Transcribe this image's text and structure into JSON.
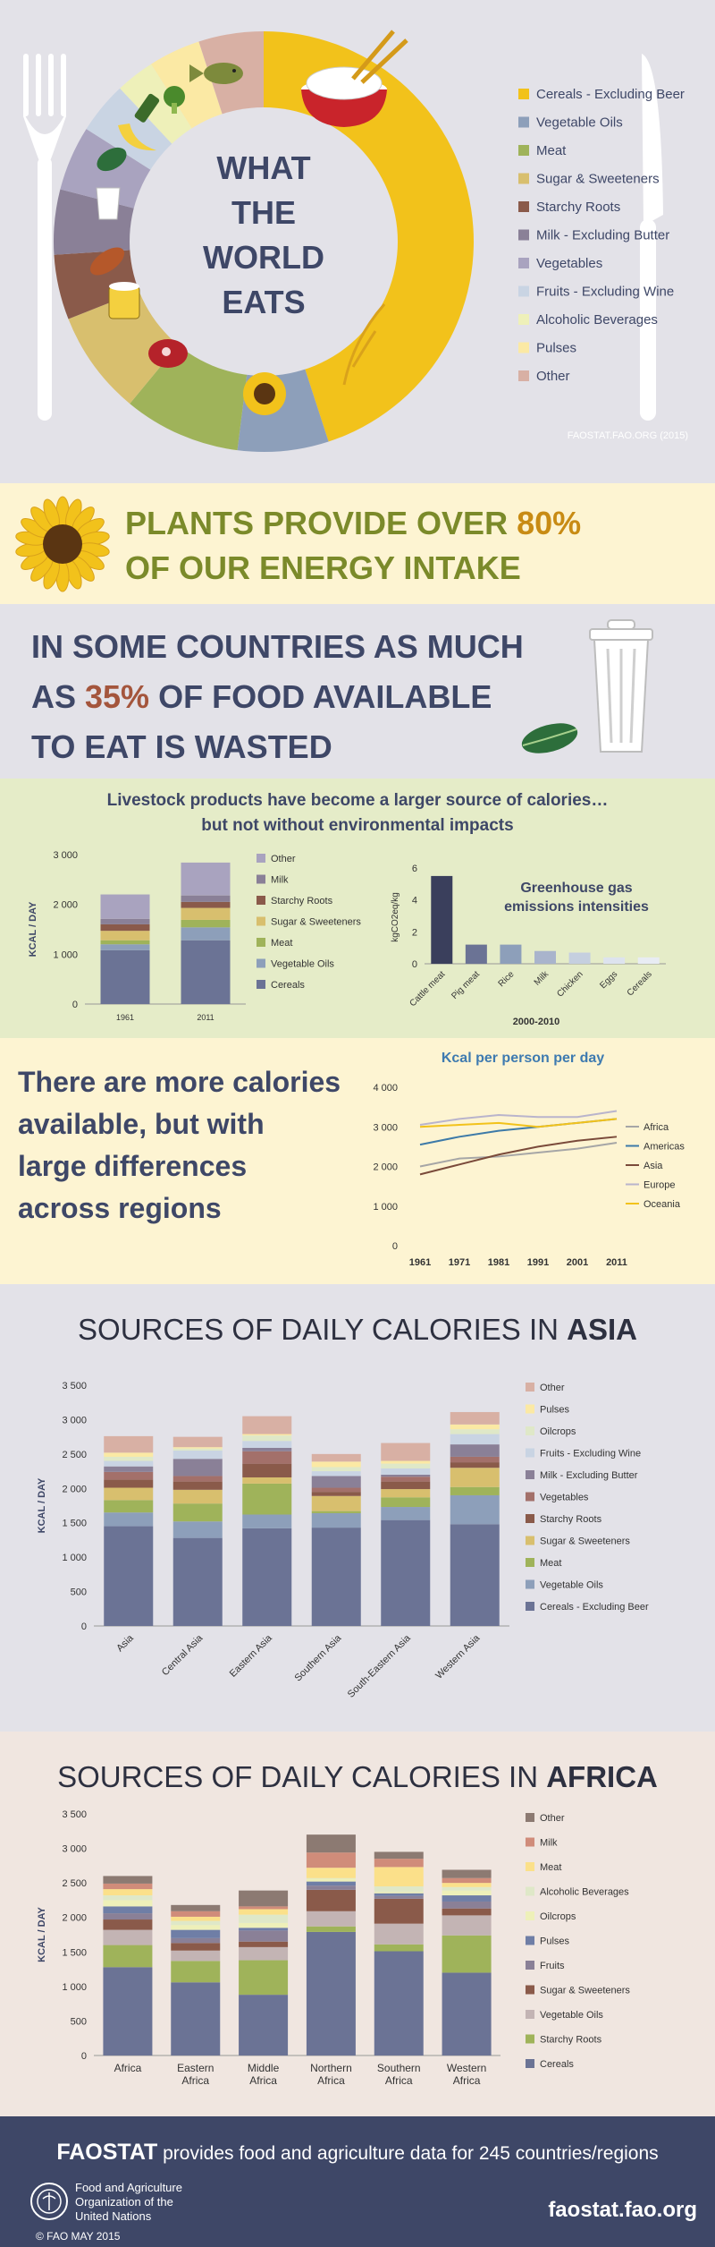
{
  "hero": {
    "title_lines": [
      "WHAT",
      "THE",
      "WORLD",
      "EATS"
    ],
    "source": "FAOSTAT.FAO.ORG (2015)",
    "legend": [
      {
        "label": "Cereals - Excluding Beer",
        "color": "#f2c21b"
      },
      {
        "label": "Vegetable Oils",
        "color": "#8d9fba"
      },
      {
        "label": "Meat",
        "color": "#9fb35a"
      },
      {
        "label": "Sugar & Sweeteners",
        "color": "#d8bf6e"
      },
      {
        "label": "Starchy Roots",
        "color": "#8a5a4a"
      },
      {
        "label": "Milk - Excluding Butter",
        "color": "#8a8097"
      },
      {
        "label": "Vegetables",
        "color": "#a9a3bf"
      },
      {
        "label": "Fruits - Excluding Wine",
        "color": "#c9d4e3"
      },
      {
        "label": "Alcoholic Beverages",
        "color": "#eef0b9"
      },
      {
        "label": "Pulses",
        "color": "#fbe9a4"
      },
      {
        "label": "Other",
        "color": "#d8b0a4"
      }
    ]
  },
  "plants": {
    "line1_pre": "PLANTS PROVIDE OVER ",
    "line1_highlight": "80%",
    "line2": "OF OUR ENERGY INTAKE"
  },
  "waste": {
    "line1": "IN SOME COUNTRIES AS MUCH",
    "line2_pre": "AS ",
    "line2_highlight": "35%",
    "line2_post": " OF FOOD AVAILABLE",
    "line3": "TO EAT IS WASTED"
  },
  "livestock": {
    "title1": "Livestock products have become a larger source of calories…",
    "title2": "but not without environmental impacts"
  },
  "regions": {
    "text_lines": [
      "There are more calories",
      "available, but with",
      "large differences",
      "across regions"
    ]
  },
  "asia": {
    "title_pre": "SOURCES OF DAILY CALORIES IN ",
    "title_bold": "ASIA"
  },
  "africa": {
    "title_pre": "SOURCES OF DAILY CALORIES IN ",
    "title_bold": "AFRICA"
  },
  "footer": {
    "brand": "FAOSTAT",
    "text": " provides food and agriculture data for 245 countries/regions",
    "org_lines": [
      "Food and Agriculture",
      "Organization of the",
      "United Nations"
    ],
    "url": "faostat.fao.org",
    "copyright": "© FAO MAY 2015"
  },
  "chart_data": [
    {
      "id": "livestock",
      "type": "bar",
      "stacked": true,
      "ylabel": "KCAL / DAY",
      "ylim": [
        0,
        3000
      ],
      "yticks": [
        "0",
        "1 000",
        "2 000",
        "3 000"
      ],
      "categories": [
        "1961",
        "2011"
      ],
      "series": [
        {
          "name": "Cereals",
          "color": "#6b7395",
          "values": [
            1080,
            1280
          ]
        },
        {
          "name": "Vegetable Oils",
          "color": "#8d9fba",
          "values": [
            120,
            260
          ]
        },
        {
          "name": "Meat",
          "color": "#9fb35a",
          "values": [
            80,
            150
          ]
        },
        {
          "name": "Sugar & Sweeteners",
          "color": "#d8bf6e",
          "values": [
            190,
            240
          ]
        },
        {
          "name": "Starchy Roots",
          "color": "#8a5a4a",
          "values": [
            130,
            120
          ]
        },
        {
          "name": "Milk",
          "color": "#8a8097",
          "values": [
            110,
            130
          ]
        },
        {
          "name": "Other",
          "color": "#a9a3bf",
          "values": [
            490,
            660
          ]
        }
      ]
    },
    {
      "id": "ghg",
      "type": "bar",
      "title": "Greenhouse gas emissions intensities",
      "ylabel": "kgCO2eq/kg",
      "xlabel": "2000-2010",
      "ylim": [
        0,
        6
      ],
      "yticks": [
        "0",
        "2",
        "4",
        "6"
      ],
      "categories": [
        "Cattle meat",
        "Pig meat",
        "Rice",
        "Milk",
        "Chicken",
        "Eggs",
        "Cereals"
      ],
      "colors": [
        "#3a3f5c",
        "#6b7395",
        "#8d9fba",
        "#a9b4cc",
        "#c5cfdf",
        "#dde3ee",
        "#e8ecf3"
      ],
      "values": [
        5.5,
        1.2,
        1.2,
        0.8,
        0.7,
        0.4,
        0.4
      ]
    },
    {
      "id": "kcal-lines",
      "type": "line",
      "title": "Kcal per person per day",
      "ylim": [
        0,
        4000
      ],
      "yticks": [
        "0",
        "1 000",
        "2 000",
        "3 000",
        "4 000"
      ],
      "x": [
        "1961",
        "1971",
        "1981",
        "1991",
        "2001",
        "2011"
      ],
      "series": [
        {
          "name": "Africa",
          "color": "#a6a6a6",
          "values": [
            2000,
            2200,
            2250,
            2350,
            2450,
            2600
          ]
        },
        {
          "name": "Americas",
          "color": "#3d7aa8",
          "values": [
            2550,
            2750,
            2900,
            3000,
            3100,
            3200
          ]
        },
        {
          "name": "Asia",
          "color": "#7a4a3a",
          "values": [
            1800,
            2050,
            2300,
            2500,
            2650,
            2750
          ]
        },
        {
          "name": "Europe",
          "color": "#b9b4cc",
          "values": [
            3050,
            3200,
            3300,
            3250,
            3250,
            3400
          ]
        },
        {
          "name": "Oceania",
          "color": "#f2c21b",
          "values": [
            3000,
            3050,
            3100,
            3000,
            3100,
            3200
          ]
        }
      ]
    },
    {
      "id": "asia",
      "type": "bar",
      "stacked": true,
      "ylabel": "KCAL / DAY",
      "ylim": [
        0,
        3500
      ],
      "yticks": [
        "0",
        "500",
        "1 000",
        "1 500",
        "2 000",
        "2 500",
        "3 000",
        "3 500"
      ],
      "categories": [
        "Asia",
        "Central Asia",
        "Eastern Asia",
        "Southern Asia",
        "South-Eastern Asia",
        "Western Asia"
      ],
      "series": [
        {
          "name": "Cereals - Excluding Beer",
          "color": "#6b7395",
          "values": [
            1450,
            1280,
            1420,
            1430,
            1540,
            1480
          ]
        },
        {
          "name": "Vegetable Oils",
          "color": "#8d9fba",
          "values": [
            200,
            240,
            200,
            210,
            190,
            420
          ]
        },
        {
          "name": "Meat",
          "color": "#9fb35a",
          "values": [
            180,
            260,
            450,
            30,
            140,
            120
          ]
        },
        {
          "name": "Sugar & Sweeteners",
          "color": "#d8bf6e",
          "values": [
            180,
            200,
            90,
            220,
            120,
            280
          ]
        },
        {
          "name": "Starchy Roots",
          "color": "#8a5a4a",
          "values": [
            120,
            120,
            200,
            60,
            110,
            80
          ]
        },
        {
          "name": "Vegetables",
          "color": "#a3706a",
          "values": [
            110,
            80,
            180,
            60,
            70,
            80
          ]
        },
        {
          "name": "Milk - Excluding Butter",
          "color": "#8a8097",
          "values": [
            80,
            250,
            50,
            170,
            30,
            180
          ]
        },
        {
          "name": "Fruits - Excluding Wine",
          "color": "#c9d4e3",
          "values": [
            80,
            120,
            100,
            70,
            90,
            150
          ]
        },
        {
          "name": "Oilcrops",
          "color": "#dfe8c8",
          "values": [
            60,
            30,
            80,
            60,
            70,
            70
          ]
        },
        {
          "name": "Pulses",
          "color": "#fbe9a4",
          "values": [
            60,
            20,
            20,
            80,
            40,
            70
          ]
        },
        {
          "name": "Other",
          "color": "#d8b0a4",
          "values": [
            240,
            150,
            260,
            110,
            260,
            180
          ]
        }
      ]
    },
    {
      "id": "africa",
      "type": "bar",
      "stacked": true,
      "ylabel": "KCAL / DAY",
      "ylim": [
        0,
        3500
      ],
      "yticks": [
        "0",
        "500",
        "1 000",
        "1 500",
        "2 000",
        "2 500",
        "3 000",
        "3 500"
      ],
      "categories": [
        "Africa",
        "Eastern Africa",
        "Middle Africa",
        "Northern Africa",
        "Southern Africa",
        "Western Africa"
      ],
      "series": [
        {
          "name": "Cereals",
          "color": "#6b7395",
          "values": [
            1280,
            1060,
            880,
            1790,
            1510,
            1200
          ]
        },
        {
          "name": "Starchy Roots",
          "color": "#9fb35a",
          "values": [
            320,
            310,
            500,
            80,
            100,
            540
          ]
        },
        {
          "name": "Vegetable Oils",
          "color": "#c3b4b4",
          "values": [
            220,
            150,
            190,
            220,
            300,
            290
          ]
        },
        {
          "name": "Sugar & Sweeteners",
          "color": "#8a5a4a",
          "values": [
            150,
            110,
            80,
            310,
            360,
            100
          ]
        },
        {
          "name": "Fruits",
          "color": "#8a8097",
          "values": [
            90,
            70,
            160,
            60,
            40,
            100
          ]
        },
        {
          "name": "Pulses",
          "color": "#6f7ea6",
          "values": [
            100,
            120,
            40,
            60,
            40,
            90
          ]
        },
        {
          "name": "Oilcrops",
          "color": "#eef0b9",
          "values": [
            90,
            70,
            70,
            40,
            20,
            70
          ]
        },
        {
          "name": "Alcoholic Beverages",
          "color": "#dfe8c8",
          "values": [
            70,
            60,
            120,
            10,
            80,
            50
          ]
        },
        {
          "name": "Meat",
          "color": "#fbe08a",
          "values": [
            90,
            60,
            80,
            150,
            280,
            60
          ]
        },
        {
          "name": "Milk",
          "color": "#d08c7a",
          "values": [
            80,
            80,
            40,
            220,
            120,
            70
          ]
        },
        {
          "name": "Other",
          "color": "#8c7a72",
          "values": [
            110,
            90,
            230,
            260,
            100,
            120
          ]
        }
      ]
    }
  ]
}
